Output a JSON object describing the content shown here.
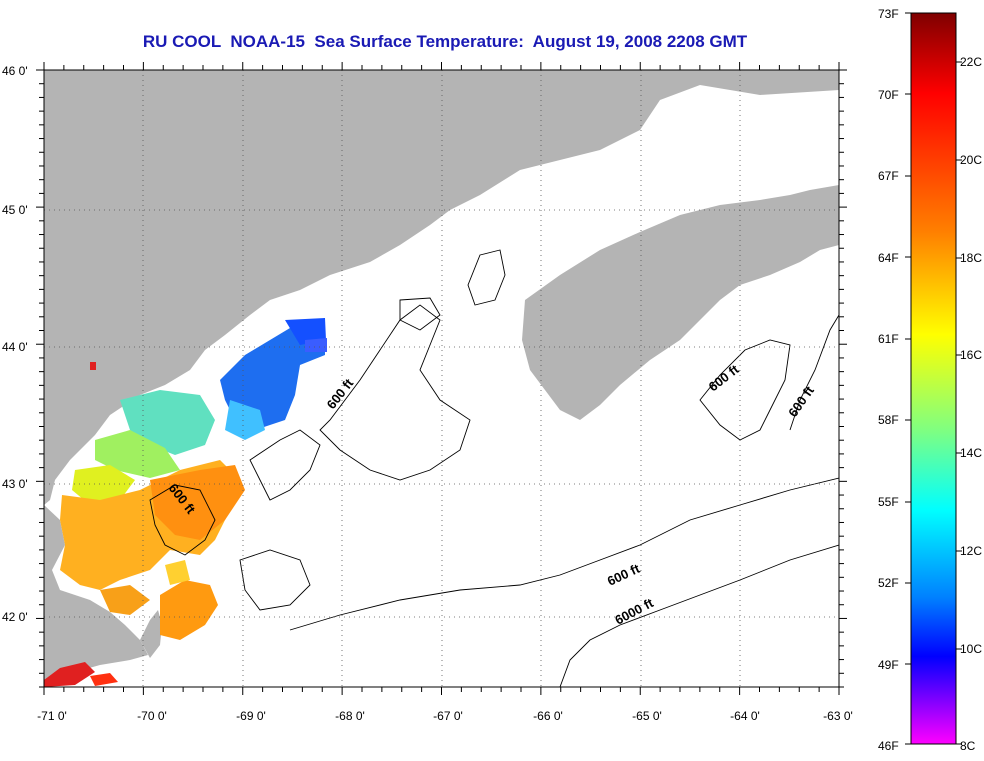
{
  "title": "RU COOL  NOAA-15  Sea Surface Temperature:  August 19, 2008 2208 GMT",
  "map": {
    "lon_range": [
      -71,
      -63
    ],
    "lat_range": [
      41.5,
      46
    ],
    "lon_ticks": [
      "-71 0'",
      "-70 0'",
      "-69 0'",
      "-68 0'",
      "-67 0'",
      "-66 0'",
      "-65 0'",
      "-64 0'",
      "-63 0'"
    ],
    "lat_ticks": [
      "46 0'",
      "45 0'",
      "44 0'",
      "43 0'",
      "42 0'"
    ],
    "land_color": "#b4b4b4",
    "contour_labels": [
      {
        "text": "600 ft",
        "lon": -68.1,
        "lat": 43.65
      },
      {
        "text": "600 ft",
        "lon": -69.8,
        "lat": 42.85
      },
      {
        "text": "600 ft",
        "lon": -64.0,
        "lat": 43.75
      },
      {
        "text": "600 ft",
        "lon": -63.3,
        "lat": 43.62
      },
      {
        "text": "600 ft",
        "lon": -65.4,
        "lat": 42.33
      },
      {
        "text": "6000 ft",
        "lon": -65.3,
        "lat": 42.0
      }
    ]
  },
  "colorbar": {
    "f_labels": [
      "73F",
      "70F",
      "67F",
      "64F",
      "61F",
      "58F",
      "55F",
      "52F",
      "49F",
      "46F"
    ],
    "c_labels": [
      "22C",
      "20C",
      "18C",
      "16C",
      "14C",
      "12C",
      "10C",
      "8C"
    ],
    "colors": [
      "#7f0000",
      "#ff0000",
      "#ff8000",
      "#ffff00",
      "#80ff80",
      "#00ffff",
      "#0080ff",
      "#0000ff",
      "#ff00ff"
    ]
  }
}
